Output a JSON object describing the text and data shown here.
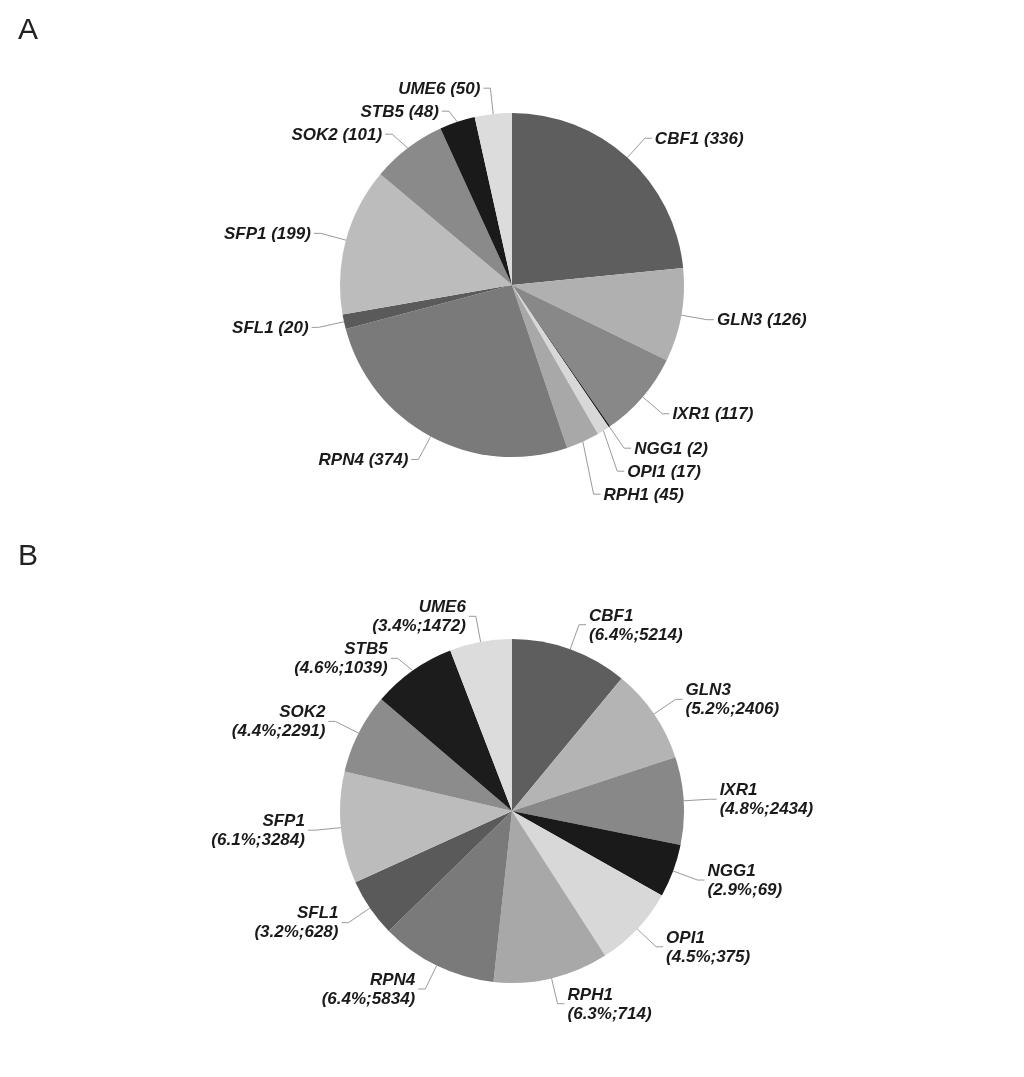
{
  "chart_data": [
    {
      "type": "pie",
      "title": "A",
      "categories": [
        "CBF1",
        "GLN3",
        "IXR1",
        "NGG1",
        "OPI1",
        "RPH1",
        "RPN4",
        "SFL1",
        "SFP1",
        "SOK2",
        "STB5",
        "UME6"
      ],
      "values": [
        336,
        126,
        117,
        2,
        17,
        45,
        374,
        20,
        199,
        101,
        48,
        50
      ],
      "value_labels": [
        "(336)",
        "(126)",
        "(117)",
        "(2)",
        "(17)",
        "(45)",
        "(374)",
        "(20)",
        "(199)",
        "(101)",
        "(48)",
        "(50)"
      ],
      "colors": [
        "#5e5e5e",
        "#b0b0b0",
        "#888888",
        "#1a1a1a",
        "#d8d8d8",
        "#a8a8a8",
        "#7a7a7a",
        "#5a5a5a",
        "#bcbcbc",
        "#8a8a8a",
        "#1a1a1a",
        "#dcdcdc"
      ]
    },
    {
      "type": "pie",
      "title": "B",
      "categories": [
        "CBF1",
        "GLN3",
        "IXR1",
        "NGG1",
        "OPI1",
        "RPH1",
        "RPN4",
        "SFL1",
        "SFP1",
        "SOK2",
        "STB5",
        "UME6"
      ],
      "values": [
        6.4,
        5.2,
        4.8,
        2.9,
        4.5,
        6.3,
        6.4,
        3.2,
        6.1,
        4.4,
        4.6,
        3.4
      ],
      "value_labels": [
        "(6.4%;5214)",
        "(5.2%;2406)",
        "(4.8%;2434)",
        "(2.9%;69)",
        "(4.5%;375)",
        "(6.3%;714)",
        "(6.4%;5834)",
        "(3.2%;628)",
        "(6.1%;3284)",
        "(4.4%;2291)",
        "(4.6%;1039)",
        "(3.4%;1472)"
      ],
      "colors": [
        "#5e5e5e",
        "#b4b4b4",
        "#888888",
        "#1a1a1a",
        "#d8d8d8",
        "#a8a8a8",
        "#7a7a7a",
        "#5a5a5a",
        "#bcbcbc",
        "#8c8c8c",
        "#1c1c1c",
        "#dcdcdc"
      ]
    }
  ]
}
